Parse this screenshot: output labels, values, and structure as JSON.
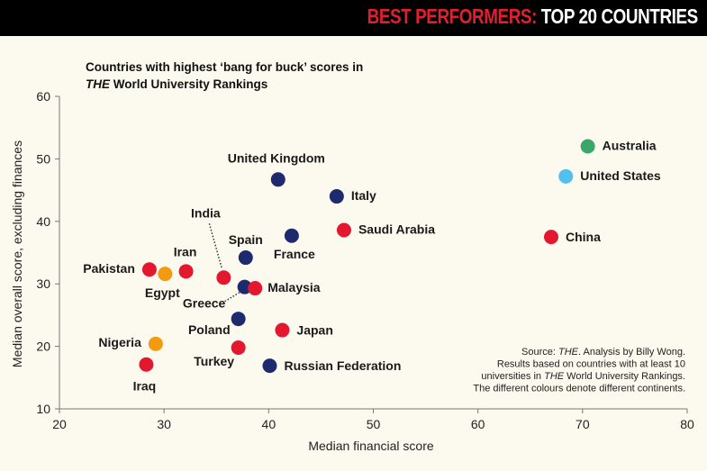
{
  "header": {
    "highlight": "BEST PERFORMERS:",
    "rest": " TOP 20 COUNTRIES"
  },
  "chart_data": {
    "type": "scatter",
    "title_line1": "Countries with highest ‘bang for buck’ scores in",
    "title_line2_italic": "THE",
    "title_line2_rest": " World University Rankings",
    "xlabel": "Median financial score",
    "ylabel": "Median overall score, excluding finances",
    "xlim": [
      20,
      80
    ],
    "ylim": [
      10,
      60
    ],
    "xticks": [
      20,
      30,
      40,
      50,
      60,
      70,
      80
    ],
    "yticks": [
      10,
      20,
      30,
      40,
      50,
      60
    ],
    "grid": false,
    "colors": {
      "asia": "#e3172d",
      "europe": "#1e2a6e",
      "africa": "#f29a12",
      "oceania": "#3aa66a",
      "north-america": "#52c0ec"
    },
    "points": [
      {
        "name": "Australia",
        "x": 70.5,
        "y": 52,
        "group": "oceania"
      },
      {
        "name": "United States",
        "x": 68.4,
        "y": 47.2,
        "group": "north-america"
      },
      {
        "name": "China",
        "x": 67,
        "y": 37.5,
        "group": "asia"
      },
      {
        "name": "United Kingdom",
        "x": 40.9,
        "y": 46.7,
        "group": "europe"
      },
      {
        "name": "Italy",
        "x": 46.5,
        "y": 44,
        "group": "europe"
      },
      {
        "name": "Saudi Arabia",
        "x": 47.2,
        "y": 38.6,
        "group": "asia"
      },
      {
        "name": "France",
        "x": 42.2,
        "y": 37.7,
        "group": "europe"
      },
      {
        "name": "Spain",
        "x": 37.8,
        "y": 34.2,
        "group": "europe"
      },
      {
        "name": "India",
        "x": 35.7,
        "y": 31,
        "group": "asia"
      },
      {
        "name": "Iran",
        "x": 32.1,
        "y": 32,
        "group": "asia"
      },
      {
        "name": "Egypt",
        "x": 30.1,
        "y": 31.6,
        "group": "africa"
      },
      {
        "name": "Pakistan",
        "x": 28.6,
        "y": 32.3,
        "group": "asia"
      },
      {
        "name": "Greece",
        "x": 37.7,
        "y": 29.5,
        "group": "europe"
      },
      {
        "name": "Malaysia",
        "x": 38.7,
        "y": 29.3,
        "group": "asia"
      },
      {
        "name": "Poland",
        "x": 37.1,
        "y": 24.4,
        "group": "europe"
      },
      {
        "name": "Japan",
        "x": 41.3,
        "y": 22.6,
        "group": "asia"
      },
      {
        "name": "Turkey",
        "x": 37.1,
        "y": 19.8,
        "group": "asia"
      },
      {
        "name": "Nigeria",
        "x": 29.2,
        "y": 20.4,
        "group": "africa"
      },
      {
        "name": "Iraq",
        "x": 28.3,
        "y": 17.1,
        "group": "asia"
      },
      {
        "name": "Russian Federation",
        "x": 40.1,
        "y": 16.9,
        "group": "europe"
      }
    ],
    "note": [
      {
        "pre": "Source: ",
        "it": "THE",
        "post": ". Analysis by Billy Wong."
      },
      {
        "pre": "Results based on countries with at least 10",
        "it": "",
        "post": ""
      },
      {
        "pre": "universities in ",
        "it": "THE",
        "post": " World University Rankings."
      },
      {
        "pre": "The different colours denote different continents.",
        "it": "",
        "post": ""
      }
    ]
  }
}
